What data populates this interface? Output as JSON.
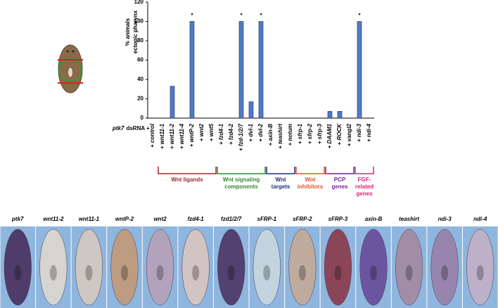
{
  "chart_data": {
    "type": "bar",
    "ylabel": [
      "% animals",
      "ectopic pharynx"
    ],
    "categories": [
      "+ control",
      "+ wnt11-1",
      "+ wnt11-2",
      "+ wnt11-4",
      "+ wntP-2",
      "+ wnt2",
      "+ wnt5",
      "+ fzd4-1",
      "+ fzd4-2",
      "+ fzd-1/2/7",
      "+ dvl-1",
      "+ dvl-2",
      "+ axin-B",
      "+ teashirt",
      "+ notum",
      "+ sfrp-1",
      "+ sfrp-2",
      "+ sfrp-3",
      "+ DAAM1",
      "+ ROCK",
      "+ vangl2",
      "+ ndi-3",
      "+ ndi-4"
    ],
    "values": [
      0,
      0,
      33,
      0,
      100,
      0,
      0,
      0,
      0,
      100,
      17,
      100,
      0,
      0,
      0,
      0,
      0,
      0,
      7,
      7,
      0,
      100,
      0
    ],
    "color": "#4f7bc8",
    "ylim": [
      0,
      120
    ],
    "yticks": [
      0,
      20,
      40,
      60,
      80,
      100,
      120
    ],
    "annotations": [
      {
        "text": "*",
        "category": "+ wntP-2"
      },
      {
        "text": "*",
        "category": "+ fzd-1/2/7"
      },
      {
        "text": "*",
        "category": "+ dvl-2"
      },
      {
        "text": "*",
        "category": "+ ndi-3"
      }
    ]
  },
  "row_label": {
    "gene": "ptk7",
    "text": "dsRNA +"
  },
  "groups": [
    {
      "lines": [
        "Wnt ligands"
      ],
      "color": "#a3262a",
      "from": "+ wnt11-1",
      "to": "+ wnt5"
    },
    {
      "lines": [
        "Wnt signaling",
        "components"
      ],
      "color": "#2e8b2e",
      "from": "+ fzd4-1",
      "to": "+ dvl-2"
    },
    {
      "lines": [
        "Wnt",
        "targets"
      ],
      "color": "#1f2e7a",
      "from": "+ axin-B",
      "to": "+ notum"
    },
    {
      "lines": [
        "Wnt",
        "inhibitors"
      ],
      "color": "#e8502a",
      "from": "+ sfrp-1",
      "to": "+ sfrp-3"
    },
    {
      "lines": [
        "PCP",
        "genes"
      ],
      "color": "#7a1f9a",
      "from": "+ DAAM1",
      "to": "+ vangl2"
    },
    {
      "lines": [
        "FGF-",
        "related",
        "genes"
      ],
      "color": "#e0207a",
      "from": "+ ndi-3",
      "to": "+ ndi-4"
    }
  ],
  "panels": [
    {
      "label": "ptk7",
      "color": "#4a2f5e"
    },
    {
      "label": "wnt11-2",
      "color": "#ded8cf"
    },
    {
      "label": "wnt11-1",
      "color": "#d6c9bf"
    },
    {
      "label": "wntP-2",
      "color": "#c49a78"
    },
    {
      "label": "wnt2",
      "color": "#b8a0b8"
    },
    {
      "label": "fzd4-1",
      "color": "#d9c6c0"
    },
    {
      "label": "fzd1/2/7",
      "color": "#4c3566"
    },
    {
      "label": "sFRP-1",
      "color": "#c9d8e0"
    },
    {
      "label": "sFRP-2",
      "color": "#c4aa98"
    },
    {
      "label": "sFRP-3",
      "color": "#8a3a4a"
    },
    {
      "label": "axin-B",
      "color": "#6a4a9a"
    },
    {
      "label": "teashirt",
      "color": "#a38aa0"
    },
    {
      "label": "ndi-3",
      "color": "#9a80a8"
    },
    {
      "label": "ndi-4",
      "color": "#c3b0c6"
    }
  ]
}
